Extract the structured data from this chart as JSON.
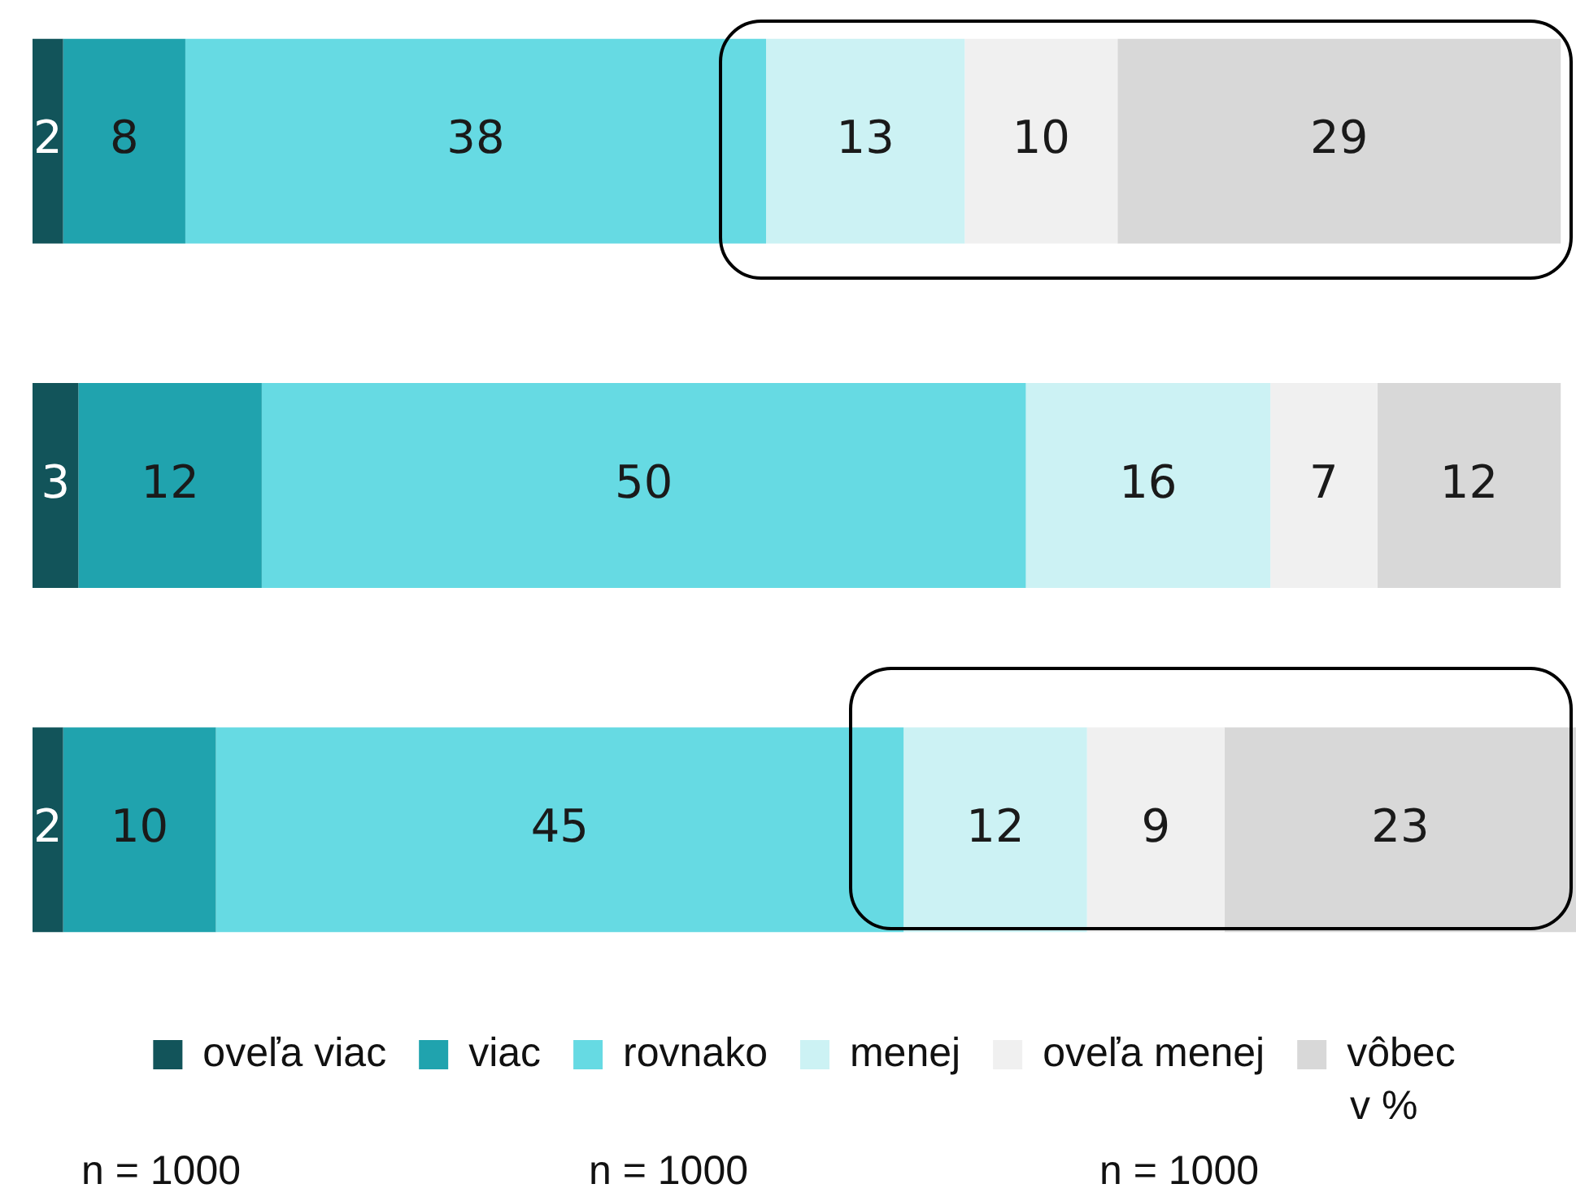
{
  "chart_data": {
    "type": "bar",
    "orientation": "horizontal",
    "stacked": true,
    "categories": [
      null,
      null,
      null
    ],
    "series": [
      {
        "name": "oveľa viac",
        "color": "#12545a",
        "values": [
          2,
          3,
          2
        ]
      },
      {
        "name": "viac",
        "color": "#20a3ae",
        "values": [
          8,
          12,
          10
        ]
      },
      {
        "name": "rovnako",
        "color": "#66dae3",
        "values": [
          38,
          50,
          45
        ]
      },
      {
        "name": "menej",
        "color": "#ccf2f4",
        "values": [
          13,
          16,
          12
        ]
      },
      {
        "name": "oveľa menej",
        "color": "#f0f0f0",
        "values": [
          10,
          7,
          9
        ]
      },
      {
        "name": "vôbec",
        "color": "#d8d8d8",
        "values": [
          29,
          12,
          23
        ]
      }
    ],
    "data_labels": true,
    "legend": "bottom",
    "grid": false,
    "tick_labels": false,
    "annotations": [
      "v %",
      "n = 1000",
      "n = 1000",
      "n = 1000"
    ]
  }
}
